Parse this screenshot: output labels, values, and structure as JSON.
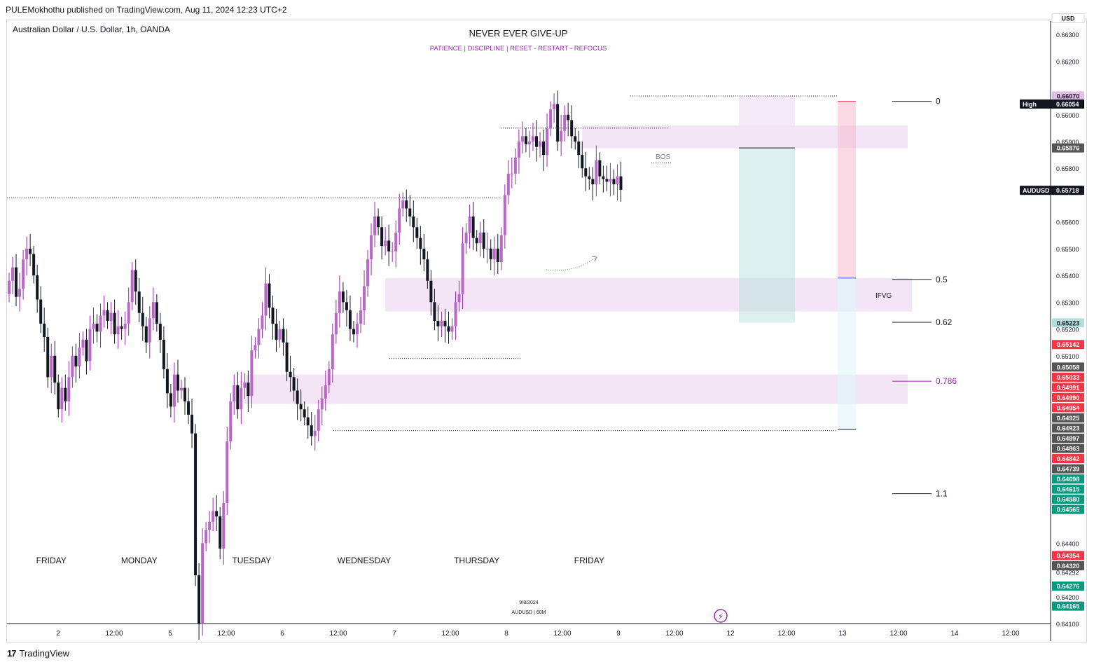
{
  "header": {
    "published": "PULEMokhothu published on TradingView.com, Aug 11, 2024 12:23 UTC+2",
    "symbol": "Australian Dollar / U.S. Dollar, 1h, OANDA",
    "title": "NEVER EVER GIVE-UP",
    "subtitle": "PATIENCE   |   DISCIPLINE   |   RESET - RESTART - REFOCUS"
  },
  "footer": {
    "brand": "TradingView"
  },
  "chart_data": {
    "type": "candlestick",
    "instrument": "AUDUSD",
    "timeframe": "1h",
    "currency": "USD",
    "ylim": [
      0.641,
      0.6635
    ],
    "y_ticks": [
      "0.66300",
      "0.66200",
      "0.66000",
      "0.65900",
      "0.65800",
      "0.65600",
      "0.65500",
      "0.65400",
      "0.65300",
      "0.65200",
      "0.65100",
      "0.64400",
      "0.64292",
      "0.64200",
      "0.64100"
    ],
    "x_ticks": [
      "2",
      "12:00",
      "5",
      "12:00",
      "6",
      "12:00",
      "7",
      "12:00",
      "8",
      "12:00",
      "9",
      "12:00",
      "12",
      "12:00",
      "13",
      "12:00",
      "14",
      "12:00"
    ],
    "day_labels": [
      "FRIDAY",
      "MONDAY",
      "TUESDAY",
      "WEDNESDAY",
      "THURSDAY",
      "FRIDAY"
    ],
    "closes": [
      0.6538,
      0.6543,
      0.6532,
      0.6535,
      0.6546,
      0.655,
      0.6548,
      0.654,
      0.6531,
      0.6522,
      0.6517,
      0.6502,
      0.651,
      0.65,
      0.649,
      0.6498,
      0.6493,
      0.6502,
      0.651,
      0.6506,
      0.6513,
      0.6516,
      0.6508,
      0.652,
      0.6522,
      0.6519,
      0.6525,
      0.6527,
      0.6523,
      0.6526,
      0.6518,
      0.6521,
      0.652,
      0.6522,
      0.653,
      0.6542,
      0.6534,
      0.6526,
      0.6521,
      0.6515,
      0.6524,
      0.653,
      0.6522,
      0.6516,
      0.6505,
      0.6496,
      0.6491,
      0.6503,
      0.6497,
      0.6498,
      0.6493,
      0.6488,
      0.6481,
      0.6428,
      0.641,
      0.644,
      0.6445,
      0.6448,
      0.6452,
      0.645,
      0.6438,
      0.6455,
      0.6478,
      0.6493,
      0.6499,
      0.649,
      0.6498,
      0.65,
      0.6495,
      0.6512,
      0.6514,
      0.652,
      0.6525,
      0.6537,
      0.6528,
      0.6522,
      0.6516,
      0.652,
      0.6515,
      0.6504,
      0.6502,
      0.6497,
      0.6492,
      0.649,
      0.6487,
      0.6484,
      0.648,
      0.6482,
      0.649,
      0.6494,
      0.6499,
      0.6505,
      0.6518,
      0.6526,
      0.6534,
      0.653,
      0.6527,
      0.652,
      0.6518,
      0.6522,
      0.6527,
      0.6536,
      0.6546,
      0.6555,
      0.6562,
      0.6558,
      0.6551,
      0.6553,
      0.6549,
      0.6549,
      0.6556,
      0.6565,
      0.6568,
      0.6565,
      0.6562,
      0.6558,
      0.6554,
      0.655,
      0.6546,
      0.6538,
      0.653,
      0.6523,
      0.6521,
      0.6523,
      0.6521,
      0.6519,
      0.6521,
      0.653,
      0.6533,
      0.6552,
      0.6556,
      0.6562,
      0.6554,
      0.6552,
      0.6556,
      0.655,
      0.655,
      0.6546,
      0.655,
      0.6545,
      0.6555,
      0.657,
      0.6578,
      0.6578,
      0.6584,
      0.659,
      0.6592,
      0.6589,
      0.659,
      0.6592,
      0.6588,
      0.659,
      0.6585,
      0.6595,
      0.6602,
      0.6604,
      0.659,
      0.6594,
      0.66,
      0.6598,
      0.6592,
      0.659,
      0.6585,
      0.658,
      0.6577,
      0.6576,
      0.6574,
      0.6583,
      0.6577,
      0.6576,
      0.6575,
      0.6576,
      0.6574,
      0.6577,
      0.6572
    ],
    "day_start_indices": [
      0,
      25,
      57,
      89,
      121,
      153
    ],
    "horizontal_levels": [
      {
        "label": "liquidity-friday",
        "price": 0.6569
      },
      {
        "label": "liquidity-thursday",
        "price": 0.6595
      },
      {
        "label": "high",
        "price": 0.6607
      },
      {
        "label": "wed-low",
        "price": 0.6509
      },
      {
        "label": "tue-low",
        "price": 0.6482
      }
    ],
    "zones": [
      {
        "label": "",
        "from": 0.65875,
        "to": 0.6596
      },
      {
        "label": "IFVG",
        "from": 0.65265,
        "to": 0.6539
      },
      {
        "label": "",
        "from": 0.6492,
        "to": 0.6503
      }
    ],
    "annotations": {
      "bos": "BOS",
      "ifvg": "IFVG"
    },
    "fibonacci": [
      {
        "level": "0",
        "price": 0.6605,
        "color": "#131722"
      },
      {
        "level": "0.5",
        "price": 0.65385,
        "color": "#131722"
      },
      {
        "level": "0.62",
        "price": 0.65225,
        "color": "#131722"
      },
      {
        "level": "0.786",
        "price": 0.65005,
        "color": "#9c27b0"
      },
      {
        "level": "1.1",
        "price": 0.64585,
        "color": "#131722"
      }
    ],
    "positions": [
      {
        "type": "long",
        "entry": 0.65876,
        "target": 0.6607,
        "stop": 0.65223
      },
      {
        "type": "short",
        "entry": 0.6539,
        "target": 0.64825,
        "stop": 0.6605
      }
    ],
    "price_labels": [
      {
        "text": "USD",
        "price": 0.6636,
        "bg": "#ffffff",
        "fg": "#131722"
      },
      {
        "text": "0.66070",
        "price": 0.6607,
        "bg": "#e1bee7",
        "fg": "#131722"
      },
      {
        "text": "0.66054",
        "price": 0.6604,
        "bg": "#000000",
        "fg": "#ffffff"
      },
      {
        "text": "0.65876",
        "price": 0.65876,
        "bg": "#555555",
        "fg": "#ffffff"
      },
      {
        "text": "0.65718",
        "price": 0.65718,
        "bg": "#131722",
        "fg": "#ffffff"
      },
      {
        "text": "0.65223",
        "price": 0.65223,
        "bg": "#b2dfdb",
        "fg": "#131722"
      },
      {
        "text": "0.65142",
        "price": 0.65142,
        "bg": "#f23645",
        "fg": "#ffffff"
      },
      {
        "text": "0.65058",
        "price": 0.65058,
        "bg": "#555555",
        "fg": "#ffffff"
      },
      {
        "text": "0.65033",
        "price": 0.6502,
        "bg": "#f23645",
        "fg": "#ffffff"
      },
      {
        "text": "0.64991",
        "price": 0.64982,
        "bg": "#f23645",
        "fg": "#ffffff"
      },
      {
        "text": "0.64990",
        "price": 0.64944,
        "bg": "#f23645",
        "fg": "#ffffff"
      },
      {
        "text": "0.64954",
        "price": 0.64906,
        "bg": "#f23645",
        "fg": "#ffffff"
      },
      {
        "text": "0.64925",
        "price": 0.64868,
        "bg": "#555555",
        "fg": "#ffffff"
      },
      {
        "text": "0.64923",
        "price": 0.6483,
        "bg": "#555555",
        "fg": "#ffffff"
      },
      {
        "text": "0.64897",
        "price": 0.64792,
        "bg": "#555555",
        "fg": "#ffffff"
      },
      {
        "text": "0.64863",
        "price": 0.64754,
        "bg": "#555555",
        "fg": "#ffffff"
      },
      {
        "text": "0.64842",
        "price": 0.64716,
        "bg": "#f23645",
        "fg": "#ffffff"
      },
      {
        "text": "0.64739",
        "price": 0.64678,
        "bg": "#555555",
        "fg": "#ffffff"
      },
      {
        "text": "0.64698",
        "price": 0.6464,
        "bg": "#089981",
        "fg": "#ffffff"
      },
      {
        "text": "0.64615",
        "price": 0.64602,
        "bg": "#089981",
        "fg": "#ffffff"
      },
      {
        "text": "0.64580",
        "price": 0.64564,
        "bg": "#089981",
        "fg": "#ffffff"
      },
      {
        "text": "0.64565",
        "price": 0.64526,
        "bg": "#089981",
        "fg": "#ffffff"
      },
      {
        "text": "0.64354",
        "price": 0.64354,
        "bg": "#f23645",
        "fg": "#ffffff"
      },
      {
        "text": "0.64320",
        "price": 0.64316,
        "bg": "#555555",
        "fg": "#ffffff"
      },
      {
        "text": "0.64276",
        "price": 0.6424,
        "bg": "#089981",
        "fg": "#ffffff"
      },
      {
        "text": "0.64165",
        "price": 0.64165,
        "bg": "#089981",
        "fg": "#ffffff"
      }
    ],
    "left_price_tags": [
      {
        "text": "High",
        "value": "0.66054",
        "price": 0.6604
      },
      {
        "text": "AUDUSD",
        "value": "0.65718",
        "price": 0.65718
      }
    ],
    "watermark": {
      "date": "9/8/2024",
      "symbol": "AUDUSD | 60M"
    }
  }
}
